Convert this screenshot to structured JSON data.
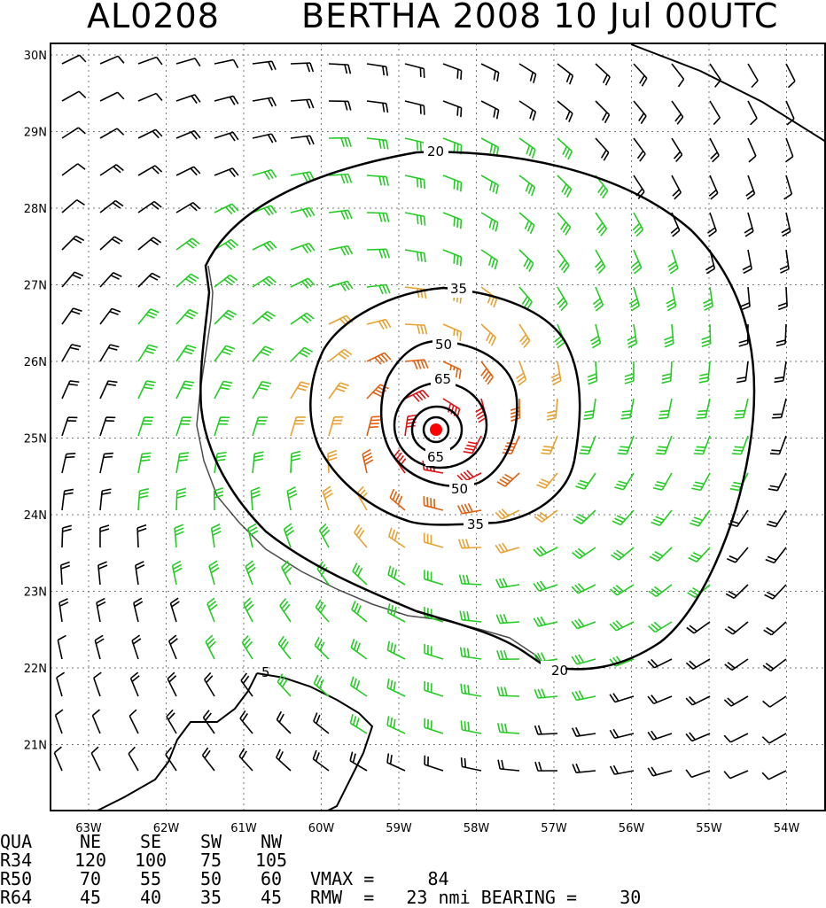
{
  "title": {
    "storm_id": "AL0208",
    "storm_time": "BERTHA 2008 10 Jul 00UTC"
  },
  "map": {
    "lat_labels": [
      "30N",
      "29N",
      "28N",
      "27N",
      "26N",
      "25N",
      "24N",
      "23N",
      "22N",
      "21N"
    ],
    "lon_labels": [
      "63W",
      "62W",
      "61W",
      "60W",
      "59W",
      "58W",
      "57W",
      "56W",
      "55W",
      "54W"
    ],
    "contours": [
      {
        "label": "20",
        "color": "#000000"
      },
      {
        "label": "35",
        "color": "#000000"
      },
      {
        "label": "50",
        "color": "#000000"
      },
      {
        "label": "65",
        "color": "#000000"
      },
      {
        "label": "5",
        "color": "#000000"
      }
    ],
    "barb_colors": {
      "calm": "#000000",
      "ts": "#22cc22",
      "strong": "#e8a030",
      "hurricane": "#e06010",
      "major": "#e01010"
    },
    "center_color": "#ff0000"
  },
  "stats": {
    "headers": [
      "QUA",
      "NE",
      "SE",
      "SW",
      "NW"
    ],
    "rows": [
      {
        "name": "R34",
        "values": [
          "120",
          "100",
          "75",
          "105"
        ]
      },
      {
        "name": "R50",
        "values": [
          "70",
          "55",
          "50",
          "60"
        ]
      },
      {
        "name": "R64",
        "values": [
          "45",
          "40",
          "35",
          "45"
        ]
      }
    ],
    "vmax_label": "VMAX =",
    "vmax_value": "84",
    "rmw_label": "RMW  =",
    "rmw_value": "23",
    "rmw_unit": "nmi",
    "bearing_label": "BEARING =",
    "bearing_value": "30"
  }
}
